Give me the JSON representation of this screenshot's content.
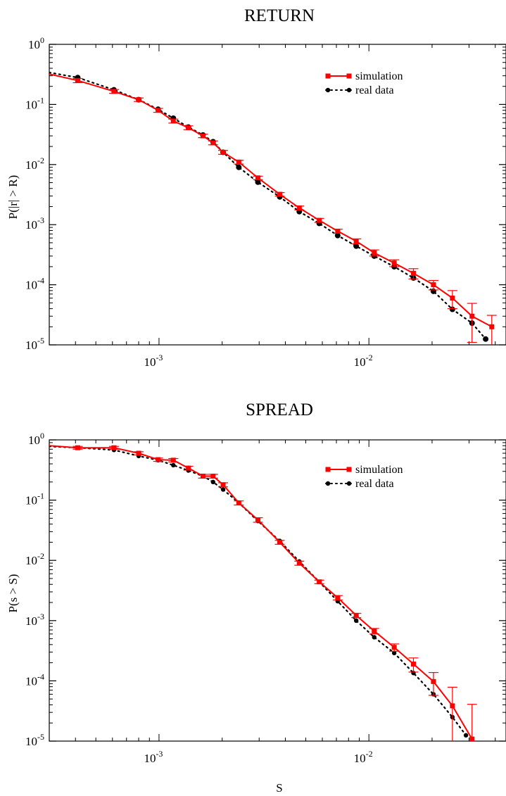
{
  "chart_data": [
    {
      "type": "line",
      "title": "RETURN",
      "ylabel": "P(|r| > R)",
      "xlabel": "",
      "xscale": "log",
      "yscale": "log",
      "xlim": [
        0.0003,
        0.045
      ],
      "ylim": [
        1e-05,
        1
      ],
      "xticks": [
        {
          "value": 0.001,
          "base": "10",
          "exp": "-3"
        },
        {
          "value": 0.01,
          "base": "10",
          "exp": "-2"
        }
      ],
      "yticks": [
        {
          "value": 1,
          "base": "10",
          "exp": "0"
        },
        {
          "value": 0.1,
          "base": "10",
          "exp": "-1"
        },
        {
          "value": 0.01,
          "base": "10",
          "exp": "-2"
        },
        {
          "value": 0.001,
          "base": "10",
          "exp": "-3"
        },
        {
          "value": 0.0001,
          "base": "10",
          "exp": "-4"
        },
        {
          "value": 1e-05,
          "base": "10",
          "exp": "-5"
        }
      ],
      "legend_position": "top-right",
      "series": [
        {
          "name": "simulation",
          "color": "#ff0000",
          "marker": "square",
          "line": "solid",
          "points": [
            {
              "x": 0.0003,
              "y": 0.32
            },
            {
              "x": 0.00041,
              "y": 0.25,
              "err": 0.02
            },
            {
              "x": 0.00061,
              "y": 0.165,
              "err": 0.012
            },
            {
              "x": 0.0008,
              "y": 0.12,
              "err": 0.008
            },
            {
              "x": 0.00099,
              "y": 0.08,
              "err": 0.006
            },
            {
              "x": 0.00117,
              "y": 0.053,
              "err": 0.004
            },
            {
              "x": 0.00138,
              "y": 0.041,
              "err": 0.003
            },
            {
              "x": 0.00162,
              "y": 0.03,
              "err": 0.002
            },
            {
              "x": 0.00181,
              "y": 0.023,
              "err": 0.0017
            },
            {
              "x": 0.00202,
              "y": 0.016,
              "err": 0.0012
            },
            {
              "x": 0.0024,
              "y": 0.011,
              "err": 0.0008
            },
            {
              "x": 0.00296,
              "y": 0.006,
              "err": 0.0004
            },
            {
              "x": 0.00376,
              "y": 0.0032,
              "err": 0.00022
            },
            {
              "x": 0.00466,
              "y": 0.0019,
              "err": 0.00014
            },
            {
              "x": 0.0058,
              "y": 0.00118,
              "err": 9e-05
            },
            {
              "x": 0.0071,
              "y": 0.00078,
              "err": 6e-05
            },
            {
              "x": 0.0087,
              "y": 0.00053,
              "err": 5e-05
            },
            {
              "x": 0.0106,
              "y": 0.00034,
              "err": 4e-05
            },
            {
              "x": 0.0132,
              "y": 0.00023,
              "err": 3e-05
            },
            {
              "x": 0.0163,
              "y": 0.000155,
              "err": 3e-05
            },
            {
              "x": 0.0203,
              "y": 0.0001,
              "err": 1.8e-05
            },
            {
              "x": 0.025,
              "y": 6e-05,
              "err": 2e-05
            },
            {
              "x": 0.031,
              "y": 3e-05,
              "err": 1.9e-05
            },
            {
              "x": 0.0385,
              "y": 2e-05,
              "err": 1.1e-05
            }
          ]
        },
        {
          "name": "real data",
          "color": "#000000",
          "marker": "circle",
          "line": "dotted",
          "points": [
            {
              "x": 0.0003,
              "y": 0.34
            },
            {
              "x": 0.00041,
              "y": 0.28
            },
            {
              "x": 0.00061,
              "y": 0.175
            },
            {
              "x": 0.0008,
              "y": 0.12
            },
            {
              "x": 0.00099,
              "y": 0.083
            },
            {
              "x": 0.00117,
              "y": 0.059
            },
            {
              "x": 0.00138,
              "y": 0.042
            },
            {
              "x": 0.00162,
              "y": 0.031
            },
            {
              "x": 0.00181,
              "y": 0.024
            },
            {
              "x": 0.00202,
              "y": 0.016
            },
            {
              "x": 0.0024,
              "y": 0.009
            },
            {
              "x": 0.00296,
              "y": 0.0051
            },
            {
              "x": 0.00376,
              "y": 0.0029
            },
            {
              "x": 0.00466,
              "y": 0.00165
            },
            {
              "x": 0.0058,
              "y": 0.00105
            },
            {
              "x": 0.0071,
              "y": 0.00066
            },
            {
              "x": 0.0087,
              "y": 0.00044
            },
            {
              "x": 0.0106,
              "y": 0.0003
            },
            {
              "x": 0.0132,
              "y": 0.0002
            },
            {
              "x": 0.0163,
              "y": 0.00013
            },
            {
              "x": 0.0203,
              "y": 7.8e-05
            },
            {
              "x": 0.025,
              "y": 3.9e-05
            },
            {
              "x": 0.031,
              "y": 2.3e-05
            },
            {
              "x": 0.036,
              "y": 1.25e-05
            }
          ]
        }
      ]
    },
    {
      "type": "line",
      "title": "SPREAD",
      "ylabel": "P(s > S)",
      "xlabel": "S",
      "xscale": "log",
      "yscale": "log",
      "xlim": [
        0.0003,
        0.045
      ],
      "ylim": [
        1e-05,
        1
      ],
      "xticks": [
        {
          "value": 0.001,
          "base": "10",
          "exp": "-3"
        },
        {
          "value": 0.01,
          "base": "10",
          "exp": "-2"
        }
      ],
      "yticks": [
        {
          "value": 1,
          "base": "10",
          "exp": "0"
        },
        {
          "value": 0.1,
          "base": "10",
          "exp": "-1"
        },
        {
          "value": 0.01,
          "base": "10",
          "exp": "-2"
        },
        {
          "value": 0.001,
          "base": "10",
          "exp": "-3"
        },
        {
          "value": 0.0001,
          "base": "10",
          "exp": "-4"
        },
        {
          "value": 1e-05,
          "base": "10",
          "exp": "-5"
        }
      ],
      "legend_position": "top-right",
      "series": [
        {
          "name": "simulation",
          "color": "#ff0000",
          "marker": "square",
          "line": "solid",
          "points": [
            {
              "x": 0.0003,
              "y": 0.8
            },
            {
              "x": 0.00041,
              "y": 0.74,
              "err": 0.04
            },
            {
              "x": 0.00061,
              "y": 0.74,
              "err": 0.04
            },
            {
              "x": 0.0008,
              "y": 0.6,
              "err": 0.035
            },
            {
              "x": 0.00099,
              "y": 0.47,
              "err": 0.03
            },
            {
              "x": 0.00117,
              "y": 0.46,
              "err": 0.03
            },
            {
              "x": 0.00138,
              "y": 0.34,
              "err": 0.025
            },
            {
              "x": 0.00162,
              "y": 0.25,
              "err": 0.018
            },
            {
              "x": 0.00181,
              "y": 0.25,
              "err": 0.018
            },
            {
              "x": 0.00202,
              "y": 0.18,
              "err": 0.014
            },
            {
              "x": 0.0024,
              "y": 0.09,
              "err": 0.007
            },
            {
              "x": 0.00296,
              "y": 0.047,
              "err": 0.004
            },
            {
              "x": 0.00376,
              "y": 0.02,
              "err": 0.0015
            },
            {
              "x": 0.00466,
              "y": 0.009,
              "err": 0.0007
            },
            {
              "x": 0.0058,
              "y": 0.0044,
              "err": 0.0003
            },
            {
              "x": 0.0071,
              "y": 0.0024,
              "err": 0.0002
            },
            {
              "x": 0.0087,
              "y": 0.00122,
              "err": 0.0001
            },
            {
              "x": 0.0106,
              "y": 0.00067,
              "err": 7e-05
            },
            {
              "x": 0.0132,
              "y": 0.00036,
              "err": 5e-05
            },
            {
              "x": 0.0163,
              "y": 0.00019,
              "err": 5e-05
            },
            {
              "x": 0.0203,
              "y": 9.75e-05,
              "err": 4e-05
            },
            {
              "x": 0.025,
              "y": 3.85e-05,
              "err": 4e-05
            },
            {
              "x": 0.031,
              "y": 1.08e-05,
              "err": 3e-05
            }
          ]
        },
        {
          "name": "real data",
          "color": "#000000",
          "marker": "circle",
          "line": "dotted",
          "points": [
            {
              "x": 0.0003,
              "y": 0.78
            },
            {
              "x": 0.00041,
              "y": 0.74
            },
            {
              "x": 0.00061,
              "y": 0.68
            },
            {
              "x": 0.0008,
              "y": 0.54
            },
            {
              "x": 0.00099,
              "y": 0.46
            },
            {
              "x": 0.00117,
              "y": 0.38
            },
            {
              "x": 0.00138,
              "y": 0.31
            },
            {
              "x": 0.00162,
              "y": 0.25
            },
            {
              "x": 0.00181,
              "y": 0.2
            },
            {
              "x": 0.00202,
              "y": 0.15
            },
            {
              "x": 0.0024,
              "y": 0.09
            },
            {
              "x": 0.00296,
              "y": 0.045
            },
            {
              "x": 0.00376,
              "y": 0.021
            },
            {
              "x": 0.00466,
              "y": 0.0096
            },
            {
              "x": 0.0058,
              "y": 0.0044
            },
            {
              "x": 0.0071,
              "y": 0.0021
            },
            {
              "x": 0.0087,
              "y": 0.001
            },
            {
              "x": 0.0106,
              "y": 0.00053
            },
            {
              "x": 0.0132,
              "y": 0.00029
            },
            {
              "x": 0.0163,
              "y": 0.000135
            },
            {
              "x": 0.0203,
              "y": 6e-05
            },
            {
              "x": 0.025,
              "y": 2.5e-05
            },
            {
              "x": 0.029,
              "y": 1.25e-05
            }
          ]
        }
      ]
    }
  ]
}
